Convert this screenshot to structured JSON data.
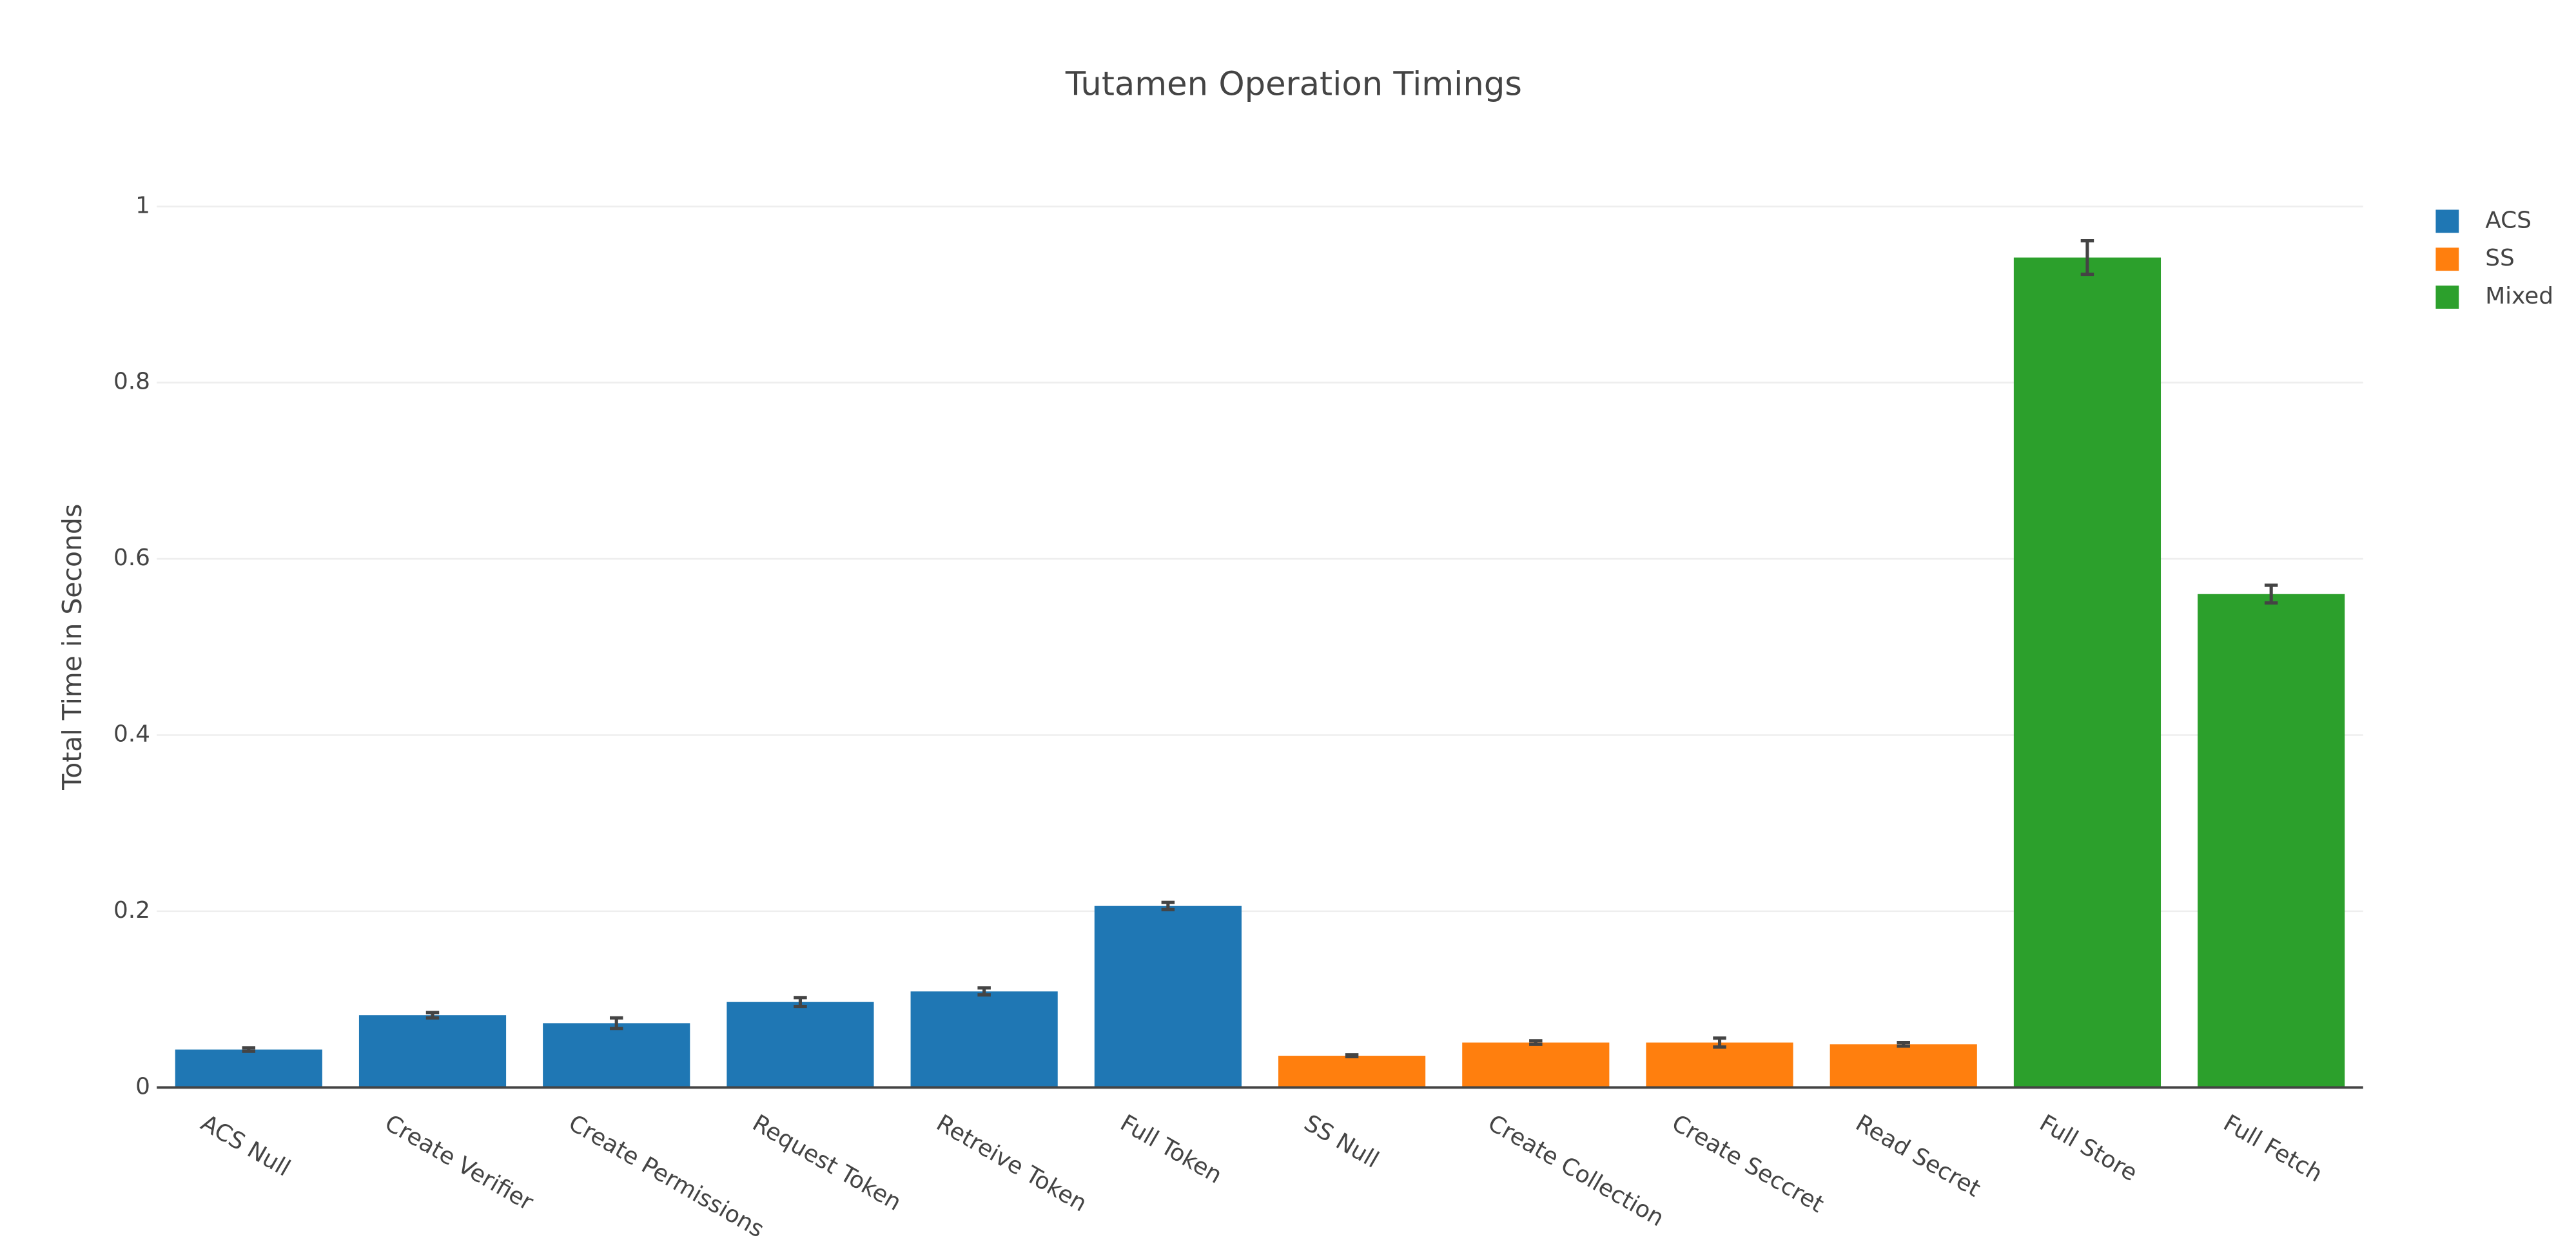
{
  "chart_data": {
    "type": "bar",
    "title": "Tutamen Operation Timings",
    "y_label": "Total Time in Seconds",
    "categories": [
      "ACS Null",
      "Create Verifier",
      "Create Permissions",
      "Request Token",
      "Retreive Token",
      "Full Token",
      "SS Null",
      "Create Collection",
      "Create Seccret",
      "Read Secret",
      "Full Store",
      "Full Fetch"
    ],
    "series": [
      {
        "name": "ACS",
        "color": "#1f77b4",
        "values": [
          0.043,
          0.082,
          0.073,
          0.097,
          0.109,
          0.206,
          null,
          null,
          null,
          null,
          null,
          null
        ],
        "errors": [
          0.002,
          0.003,
          0.006,
          0.005,
          0.004,
          0.004,
          null,
          null,
          null,
          null,
          null,
          null
        ]
      },
      {
        "name": "SS",
        "color": "#ff7f0e",
        "values": [
          null,
          null,
          null,
          null,
          null,
          null,
          0.036,
          0.051,
          0.051,
          0.049,
          null,
          null
        ],
        "errors": [
          null,
          null,
          null,
          null,
          null,
          null,
          0.001,
          0.002,
          0.005,
          0.002,
          null,
          null
        ]
      },
      {
        "name": "Mixed",
        "color": "#2ca02c",
        "values": [
          null,
          null,
          null,
          null,
          null,
          null,
          null,
          null,
          null,
          null,
          0.942,
          0.56
        ],
        "errors": [
          null,
          null,
          null,
          null,
          null,
          null,
          null,
          null,
          null,
          null,
          0.019,
          0.01
        ]
      }
    ],
    "ylim": [
      0,
      1
    ],
    "yticks": [
      0,
      0.2,
      0.4,
      0.6,
      0.8,
      1
    ],
    "grid": true
  }
}
